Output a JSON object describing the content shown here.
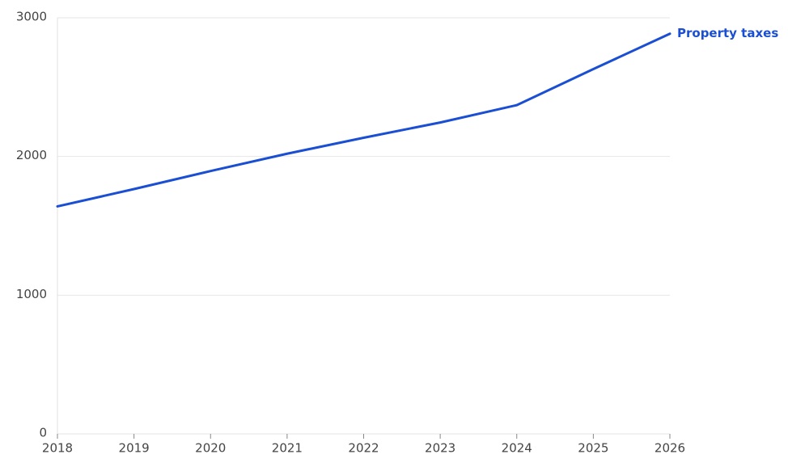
{
  "chart_data": {
    "type": "line",
    "x": [
      2018,
      2019,
      2020,
      2021,
      2022,
      2023,
      2024,
      2025,
      2026
    ],
    "series": [
      {
        "name": "Property taxes",
        "color": "#1b4fd3",
        "values": [
          1640,
          1765,
          1895,
          2020,
          2135,
          2245,
          2370,
          2630,
          2885
        ]
      }
    ],
    "xlim": [
      2018,
      2026
    ],
    "xticks": [
      2018,
      2019,
      2020,
      2021,
      2022,
      2023,
      2024,
      2025,
      2026
    ],
    "ylim": [
      0,
      3000
    ],
    "yticks": [
      0,
      1000,
      2000,
      3000
    ],
    "grid": true
  }
}
